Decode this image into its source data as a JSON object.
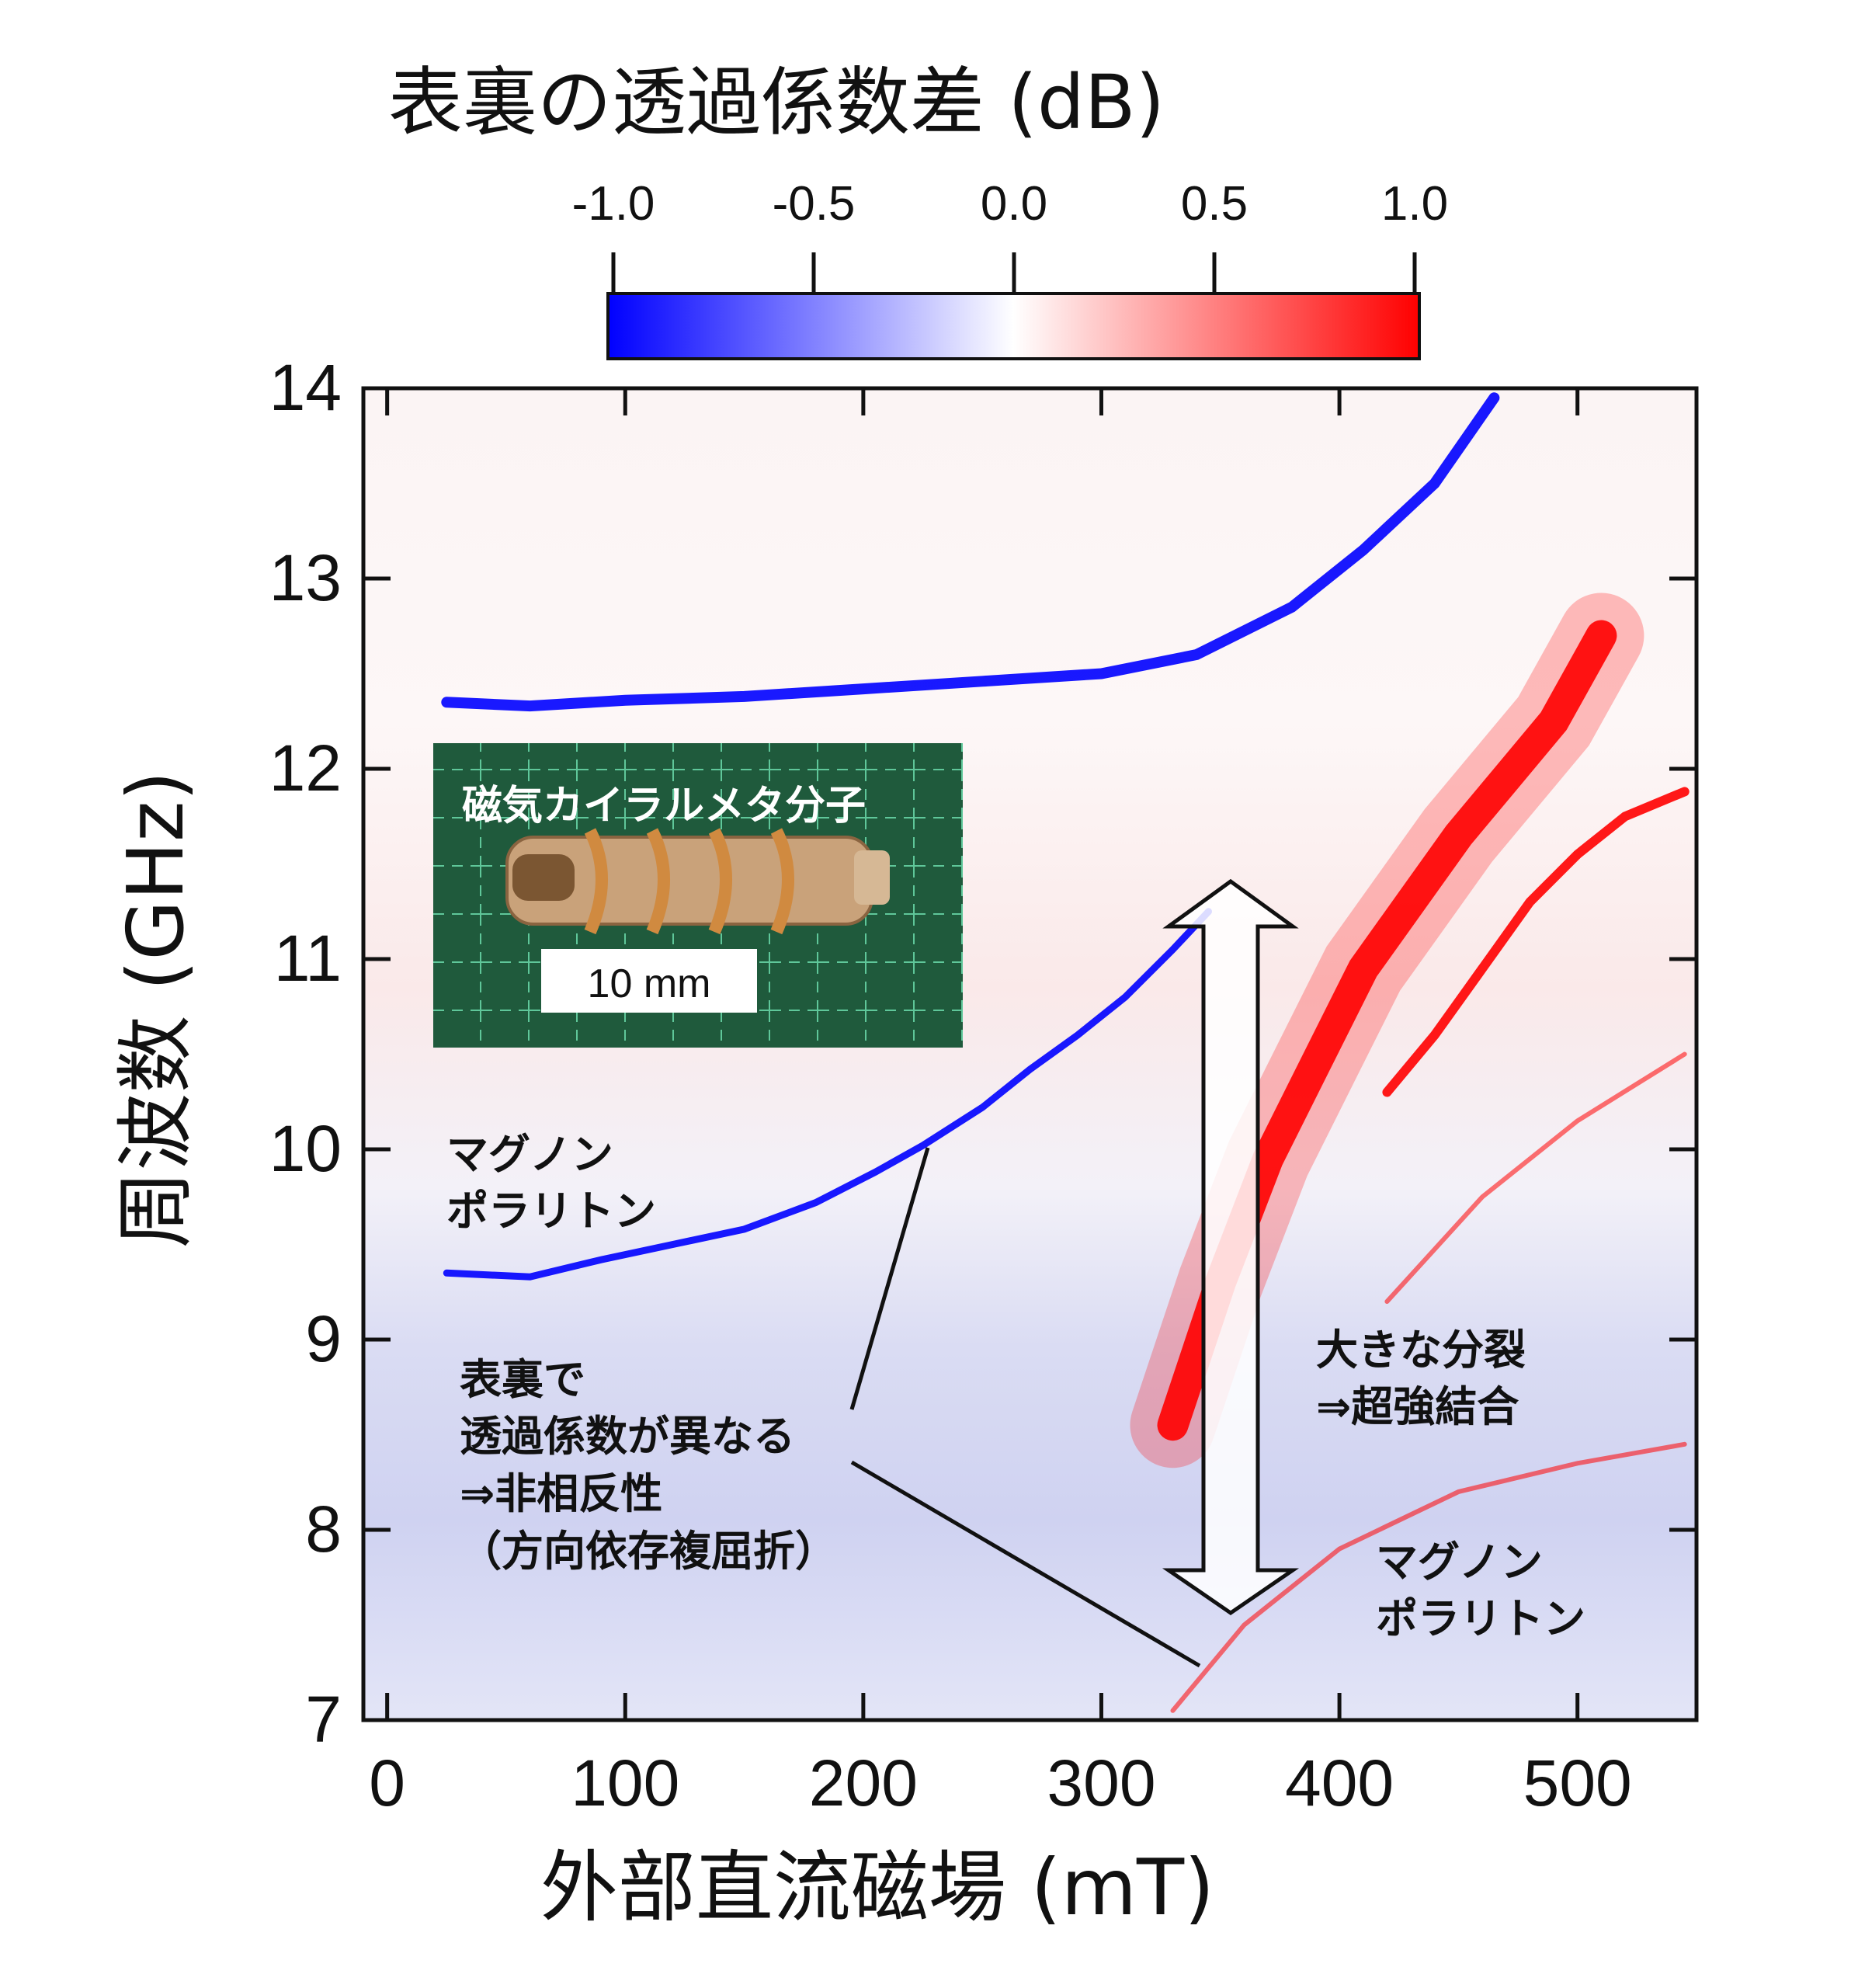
{
  "chart_data": {
    "type": "heatmap",
    "colorbar": {
      "title": "表裏の透過係数差 (dB)",
      "ticks": [
        "-1.0",
        "-0.5",
        "0.0",
        "0.5",
        "1.0"
      ],
      "range": [
        -1.0,
        1.0
      ],
      "colors": {
        "low": "#0000ff",
        "mid": "#ffffff",
        "high": "#ff0000"
      }
    },
    "xlabel": "外部直流磁場 (mT)",
    "ylabel": "周波数 (GHz)",
    "xlim": [
      -10,
      550
    ],
    "ylim": [
      7,
      14
    ],
    "xticks": [
      "0",
      "100",
      "200",
      "300",
      "400",
      "500"
    ],
    "yticks": [
      "7",
      "8",
      "9",
      "10",
      "11",
      "12",
      "13",
      "14"
    ],
    "series": [
      {
        "sign": "negative",
        "x": [
          25,
          60,
          100,
          150,
          200,
          250,
          300,
          340,
          380,
          410,
          440,
          465
        ],
        "y": [
          12.35,
          12.33,
          12.36,
          12.38,
          12.42,
          12.46,
          12.5,
          12.6,
          12.85,
          13.15,
          13.5,
          13.95
        ]
      },
      {
        "sign": "negative",
        "x": [
          25,
          60,
          90,
          120,
          150,
          180,
          205,
          225,
          250,
          270,
          290,
          310,
          330,
          345
        ],
        "y": [
          9.35,
          9.33,
          9.42,
          9.5,
          9.58,
          9.72,
          9.88,
          10.02,
          10.22,
          10.42,
          10.6,
          10.8,
          11.05,
          11.25
        ]
      },
      {
        "sign": "positive",
        "x": [
          330,
          350,
          370,
          390,
          410,
          430,
          450,
          470,
          490,
          510
        ],
        "y": [
          8.55,
          9.3,
          9.95,
          10.45,
          10.95,
          11.3,
          11.65,
          11.95,
          12.25,
          12.7
        ]
      },
      {
        "sign": "positive",
        "x": [
          420,
          440,
          460,
          480,
          500,
          520,
          545
        ],
        "y": [
          10.3,
          10.6,
          10.95,
          11.3,
          11.55,
          11.75,
          11.88
        ]
      },
      {
        "sign": "positive",
        "x": [
          330,
          360,
          400,
          450,
          500,
          545
        ],
        "y": [
          7.05,
          7.5,
          7.9,
          8.2,
          8.35,
          8.45
        ]
      },
      {
        "sign": "positive",
        "x": [
          420,
          460,
          500,
          545
        ],
        "y": [
          9.2,
          9.75,
          10.15,
          10.5
        ]
      }
    ],
    "annotations": [
      {
        "lines": [
          "磁気カイラルメタ分子"
        ]
      },
      {
        "lines": [
          "10 mm"
        ]
      },
      {
        "lines": [
          "マグノン",
          "ポラリトン"
        ]
      },
      {
        "lines": [
          "表裏で",
          "透過係数が異なる",
          "⇒非相反性",
          "（方向依存複屈折）"
        ]
      },
      {
        "lines": [
          "大きな分裂",
          "⇒超強結合"
        ]
      },
      {
        "lines": [
          "マグノン",
          "ポラリトン"
        ]
      }
    ]
  }
}
